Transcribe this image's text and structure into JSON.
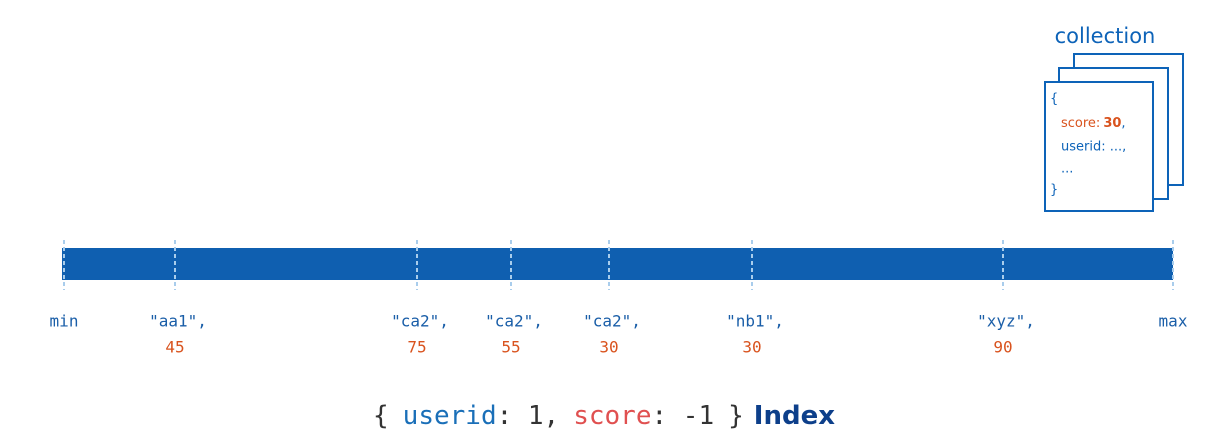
{
  "collection": {
    "title": "collection",
    "open": "{",
    "score_key": "score:",
    "score_value": 30,
    "score_suffix": ",",
    "lines": [
      "userid: ...,",
      "..."
    ],
    "close": "}"
  },
  "index": {
    "min": "min",
    "max": "max",
    "keys": [
      {
        "userid": "\"aa1\",",
        "score": 45
      },
      {
        "userid": "\"ca2\",",
        "score": 75
      },
      {
        "userid": "\"ca2\",",
        "score": 55
      },
      {
        "userid": "\"ca2\",",
        "score": 30
      },
      {
        "userid": "\"nb1\",",
        "score": 30
      },
      {
        "userid": "\"xyz\",",
        "score": 90
      }
    ]
  },
  "caption": {
    "open": "{",
    "userid_key": "userid",
    "userid_rest": ": 1,",
    "score_key": "score",
    "score_rest": ": -1",
    "close": "}",
    "title": "Index"
  }
}
